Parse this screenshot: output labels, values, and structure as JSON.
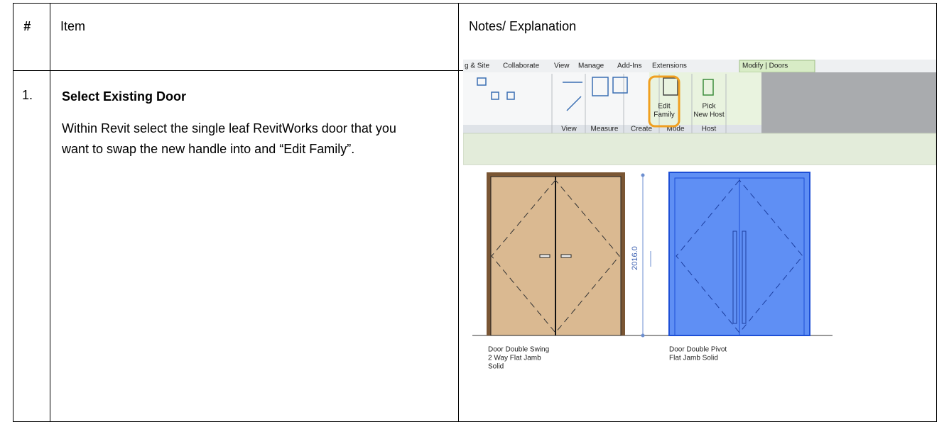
{
  "table": {
    "header": [
      "#",
      "Item",
      "Notes/ Explanation"
    ],
    "rows": [
      {
        "number": "1.",
        "item_title": "Select Existing Door",
        "item_text": "Within Revit select the single leaf RevitWorks door that you want to swap the new handle into and “Edit Family”.",
        "screenshot": {
          "tabs": [
            "g & Site",
            "Collaborate",
            "View",
            "Manage",
            "Add-Ins",
            "Extensions",
            "Modify | Doors"
          ],
          "groups": [
            "View",
            "Measure",
            "Create",
            "Mode",
            "Host"
          ],
          "buttons": [
            {
              "lines": [
                "Edit",
                "Family"
              ]
            },
            {
              "lines": [
                "Pick",
                "New Host"
              ]
            }
          ],
          "dimension": "2016.0",
          "doors": [
            {
              "lines": [
                "Door Double Swing",
                "2 Way Flat Jamb",
                "Solid"
              ]
            },
            {
              "lines": [
                "Door Double Pivot",
                "Flat Jamb Solid"
              ]
            }
          ]
        }
      }
    ]
  }
}
